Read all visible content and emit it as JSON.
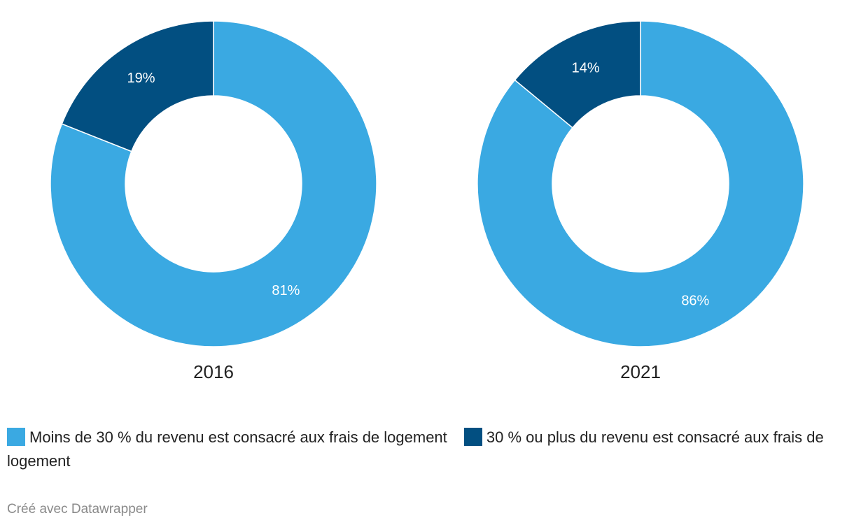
{
  "colors": {
    "light": "#3aa9e2",
    "dark": "#024f81",
    "label_on_slice": "#ffffff",
    "year_label": "#222222",
    "credit": "#8a8a8a"
  },
  "chart_data": [
    {
      "type": "pie",
      "variant": "donut",
      "title": "2016",
      "slices": [
        {
          "name": "Moins de 30 % du revenu est consacré aux frais de logement",
          "value": 81,
          "label": "81%",
          "color": "#3aa9e2"
        },
        {
          "name": "30 % ou plus du revenu est consacré aux frais de logement",
          "value": 19,
          "label": "19%",
          "color": "#024f81"
        }
      ]
    },
    {
      "type": "pie",
      "variant": "donut",
      "title": "2021",
      "slices": [
        {
          "name": "Moins de 30 % du revenu est consacré aux frais de logement",
          "value": 86,
          "label": "86%",
          "color": "#3aa9e2"
        },
        {
          "name": "30 % ou plus du revenu est consacré aux frais de logement",
          "value": 14,
          "label": "14%",
          "color": "#024f81"
        }
      ]
    }
  ],
  "legend": {
    "placement": "bottom-left",
    "items": [
      {
        "label": "Moins de 30 % du revenu est consacré aux frais de logement",
        "color": "#3aa9e2"
      },
      {
        "label": "30 % ou plus du revenu est consacré aux frais de logement",
        "color": "#024f81"
      }
    ]
  },
  "footer": {
    "credit": "Créé avec Datawrapper"
  }
}
